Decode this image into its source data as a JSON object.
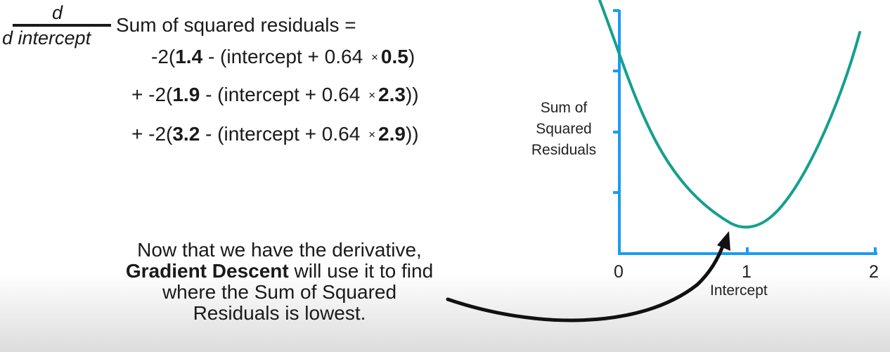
{
  "formula": {
    "numerator": "d",
    "denominator": "d intercept",
    "lhs": "Sum of squared residuals =",
    "terms": [
      {
        "prefix": "-2(",
        "observed": "1.4",
        "middle": " - (intercept + 0.64 ",
        "times": "×",
        "x": "0.5",
        "suffix": ")"
      },
      {
        "prefix": "+ -2(",
        "observed": "1.9",
        "middle": " - (intercept + 0.64 ",
        "times": "×",
        "x": "2.3",
        "suffix": "))"
      },
      {
        "prefix": "+ -2(",
        "observed": "3.2",
        "middle": " - (intercept + 0.64 ",
        "times": "×",
        "x": "2.9",
        "suffix": "))"
      }
    ]
  },
  "caption": {
    "line1": "Now that we have the derivative,",
    "bold": "Gradient Descent",
    "line2_rest": " will use it to find",
    "line3": "where the Sum of Squared",
    "line4": "Residuals is lowest."
  },
  "graph": {
    "ylabel": [
      "Sum of",
      "Squared",
      "Residuals"
    ],
    "xlabel": "Intercept",
    "xticks": [
      "0",
      "1",
      "2"
    ],
    "axis_color": "#1a9cf0",
    "curve_color": "#14a08c",
    "arrow_color": "#111111",
    "curve_minimum_intercept": 0.95
  }
}
